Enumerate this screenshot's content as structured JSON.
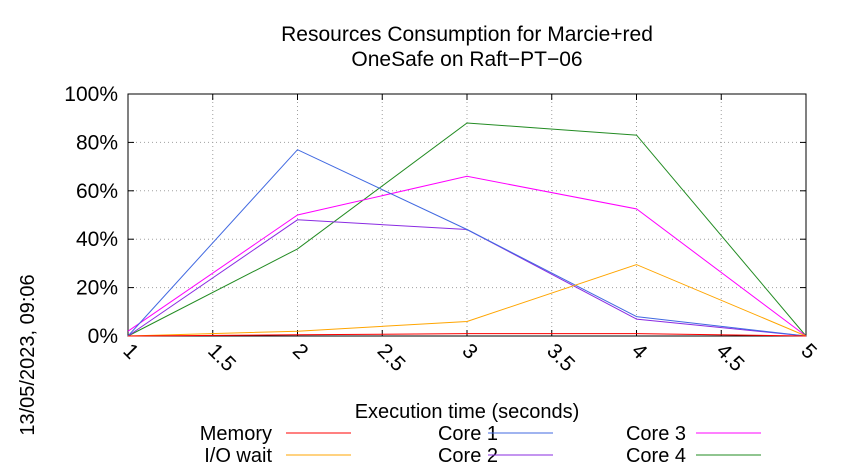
{
  "chart_data": {
    "type": "line",
    "title_lines": [
      "Resources Consumption for Marcie+red",
      "OneSafe on Raft−PT−06"
    ],
    "xlabel": "Execution time (seconds)",
    "ylabel": "",
    "xlim": [
      1,
      5
    ],
    "ylim": [
      0,
      100
    ],
    "x_ticks": [
      1,
      1.5,
      2,
      2.5,
      3,
      3.5,
      4,
      4.5,
      5
    ],
    "x_tick_labels": [
      "1",
      "1.5",
      "2",
      "2.5",
      "3",
      "3.5",
      "4",
      "4.5",
      "5"
    ],
    "y_ticks": [
      0,
      20,
      40,
      60,
      80,
      100
    ],
    "y_tick_labels": [
      "0%",
      "20%",
      "40%",
      "60%",
      "80%",
      "100%"
    ],
    "grid": true,
    "legend_position": "bottom",
    "x": [
      1,
      2,
      3,
      4,
      5
    ],
    "series": [
      {
        "name": "Memory",
        "color": "#ff0000",
        "values": [
          0,
          0.5,
          1,
          1,
          0
        ]
      },
      {
        "name": "I/O wait",
        "color": "#ffa500",
        "values": [
          0,
          2,
          6,
          29.5,
          0
        ]
      },
      {
        "name": "Core 1",
        "color": "#4169e1",
        "values": [
          0,
          77,
          44,
          8,
          0
        ]
      },
      {
        "name": "Core 2",
        "color": "#8a2be2",
        "values": [
          0,
          48,
          44,
          7,
          0
        ]
      },
      {
        "name": "Core 3",
        "color": "#ff00ff",
        "values": [
          2,
          50,
          66,
          52.5,
          0
        ]
      },
      {
        "name": "Core 4",
        "color": "#228b22",
        "values": [
          0,
          36,
          88,
          83,
          0
        ]
      }
    ]
  },
  "timestamp": "13/05/2023, 09:06"
}
